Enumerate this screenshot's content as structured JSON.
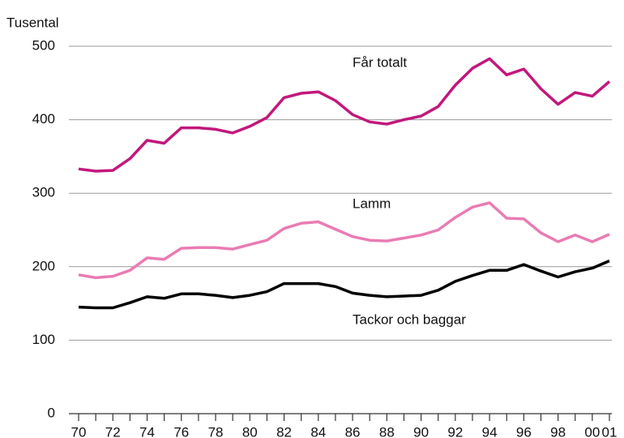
{
  "chart_data": {
    "type": "line",
    "y_axis_label": "Tusental",
    "categories": [
      "70",
      null,
      "72",
      null,
      "74",
      null,
      "76",
      null,
      "78",
      null,
      "80",
      null,
      "82",
      null,
      "84",
      null,
      "86",
      null,
      "88",
      null,
      "90",
      null,
      "92",
      null,
      "94",
      null,
      "96",
      null,
      "98",
      null,
      "00",
      "01"
    ],
    "series": [
      {
        "name": "Får totalt",
        "color": "#c2187c",
        "values": [
          333,
          330,
          331,
          347,
          372,
          368,
          389,
          389,
          387,
          382,
          391,
          403,
          430,
          436,
          438,
          426,
          407,
          397,
          394,
          400,
          405,
          418,
          447,
          470,
          483,
          461,
          469,
          442,
          421,
          437,
          432,
          452
        ]
      },
      {
        "name": "Lamm",
        "color": "#e97cb3",
        "values": [
          189,
          185,
          187,
          195,
          212,
          210,
          225,
          226,
          226,
          224,
          230,
          236,
          252,
          259,
          261,
          251,
          241,
          236,
          235,
          239,
          243,
          250,
          267,
          281,
          287,
          266,
          265,
          246,
          234,
          243,
          234,
          244
        ]
      },
      {
        "name": "Tackor och baggar",
        "color": "#000000",
        "values": [
          145,
          144,
          144,
          151,
          159,
          157,
          163,
          163,
          161,
          158,
          161,
          166,
          177,
          177,
          177,
          173,
          164,
          161,
          159,
          160,
          161,
          168,
          180,
          188,
          195,
          195,
          203,
          194,
          186,
          193,
          198,
          208
        ]
      }
    ],
    "ylim": [
      0,
      500
    ],
    "yticks": [
      0,
      100,
      200,
      300,
      400,
      500
    ],
    "grid": true
  }
}
